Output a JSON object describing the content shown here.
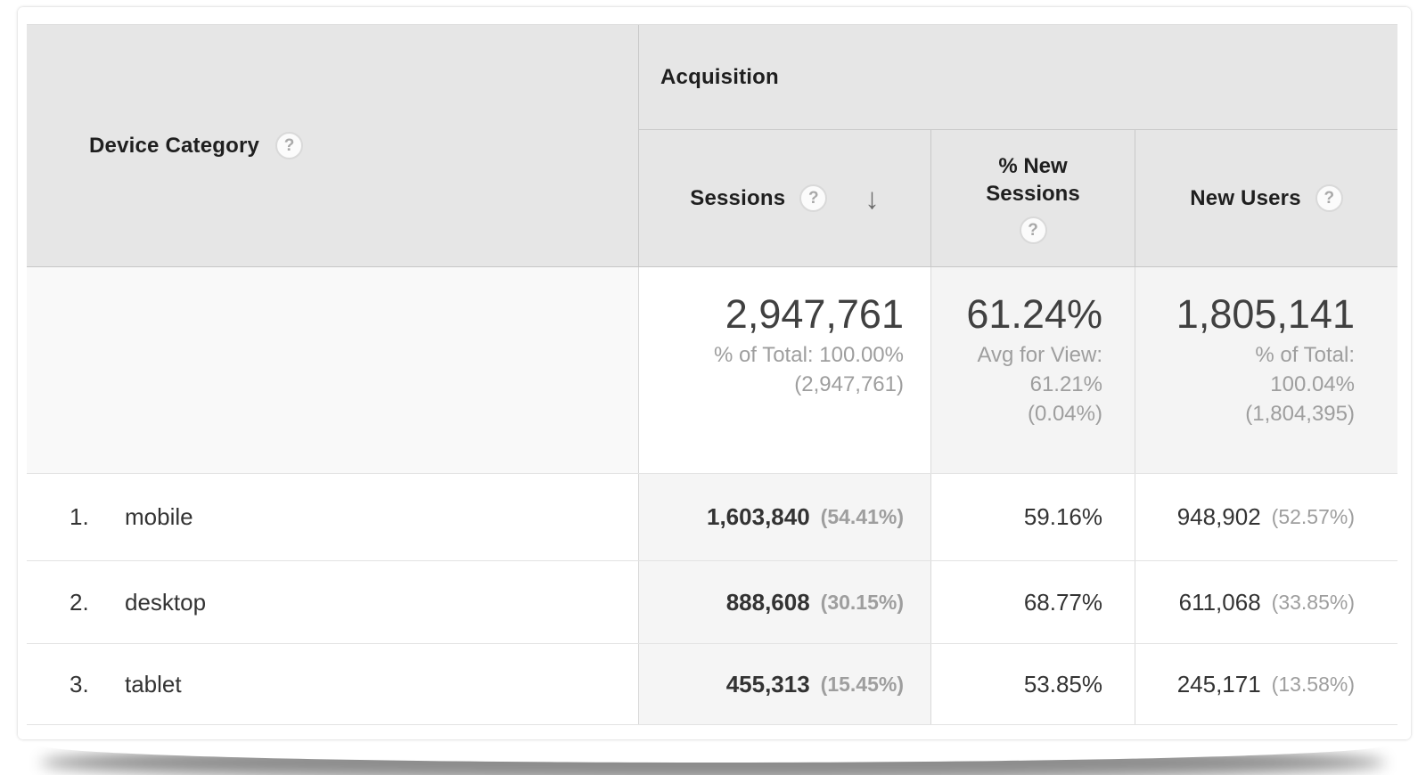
{
  "icons": {
    "help": "?",
    "sort_desc": "↓"
  },
  "colors": {
    "header_bg": "#e6e6e6",
    "sorted_column_bg": "#f5f5f5",
    "summary_dim_bg": "#f9f9f9",
    "summary_metric_bg": "#f4f4f4",
    "primary_text": "#333333",
    "secondary_text": "#9e9e9e",
    "border": "#c9c9c9"
  },
  "header": {
    "dimension": "Device Category",
    "group": "Acquisition",
    "col_sessions": "Sessions",
    "col_new_sessions_line1": "% New",
    "col_new_sessions_line2": "Sessions",
    "col_new_users": "New Users",
    "sort_state": "descending by Sessions"
  },
  "summary": {
    "sessions_value": "2,947,761",
    "sessions_sub1": "% of Total: 100.00%",
    "sessions_sub2": "(2,947,761)",
    "new_sessions_value": "61.24%",
    "new_sessions_sub1": "Avg for View:",
    "new_sessions_sub2": "61.21%",
    "new_sessions_sub3": "(0.04%)",
    "new_users_value": "1,805,141",
    "new_users_sub1": "% of Total:",
    "new_users_sub2": "100.04%",
    "new_users_sub3": "(1,804,395)"
  },
  "rows": [
    {
      "rank": "1.",
      "device": "mobile",
      "sessions": "1,603,840",
      "sessions_pct": "(54.41%)",
      "new_sessions": "59.16%",
      "new_users": "948,902",
      "new_users_pct": "(52.57%)"
    },
    {
      "rank": "2.",
      "device": "desktop",
      "sessions": "888,608",
      "sessions_pct": "(30.15%)",
      "new_sessions": "68.77%",
      "new_users": "611,068",
      "new_users_pct": "(33.85%)"
    },
    {
      "rank": "3.",
      "device": "tablet",
      "sessions": "455,313",
      "sessions_pct": "(15.45%)",
      "new_sessions": "53.85%",
      "new_users": "245,171",
      "new_users_pct": "(13.58%)"
    }
  ]
}
